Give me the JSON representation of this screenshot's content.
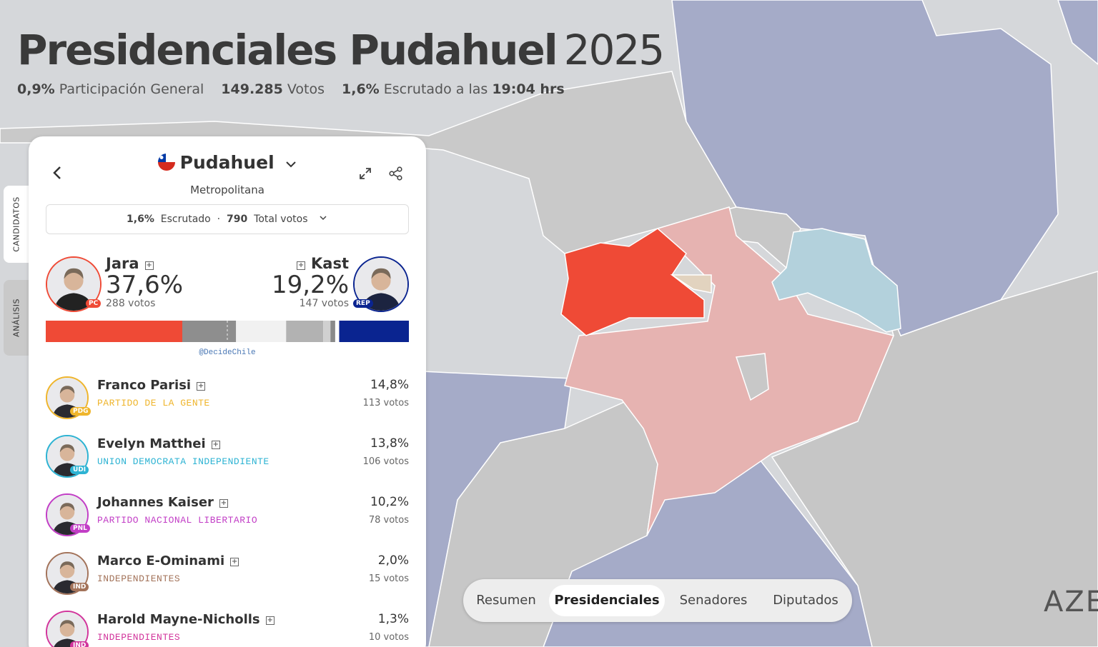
{
  "header": {
    "title": "Presidenciales Pudahuel",
    "year": "2025",
    "stats": [
      {
        "value": "0,9%",
        "label": "Participación General"
      },
      {
        "value": "149.285",
        "label": "Votos"
      },
      {
        "value": "1,6%",
        "label": "Escrutado a las",
        "time": "19:04 hrs"
      }
    ]
  },
  "side_tabs": [
    "CANDIDATOS",
    "ANÁLISIS"
  ],
  "panel": {
    "commune": "Pudahuel",
    "region": "Metropolitana",
    "counted": "1,6%",
    "counted_label": "Escrutado",
    "separator": "·",
    "total": "790",
    "total_label": "Total votos",
    "source": "@DecideChile",
    "leaders": [
      {
        "name": "Jara",
        "percent": "37,6%",
        "votes": "288 votos",
        "party": "PC",
        "color": "#ef4a36"
      },
      {
        "name": "Kast",
        "percent": "19,2%",
        "votes": "147 votos",
        "party": "REP",
        "color": "#0a2490"
      }
    ],
    "candidates": [
      {
        "name": "Franco Parisi",
        "party_name": "PARTIDO DE LA GENTE",
        "percent": "14,8%",
        "votes": "113 votos",
        "party": "PDG",
        "color": "#efb52c",
        "bar_color": "#8e8e8e"
      },
      {
        "name": "Evelyn Matthei",
        "party_name": "UNION DEMOCRATA INDEPENDIENTE",
        "percent": "13,8%",
        "votes": "106 votos",
        "party": "UDI",
        "color": "#2db3d3",
        "bar_color": "#f1f1f1"
      },
      {
        "name": "Johannes Kaiser",
        "party_name": "PARTIDO NACIONAL LIBERTARIO",
        "percent": "10,2%",
        "votes": "78 votos",
        "party": "PNL",
        "color": "#c23ec6",
        "bar_color": "#b2b2b2"
      },
      {
        "name": "Marco E-Ominami",
        "party_name": "INDEPENDIENTES",
        "percent": "2,0%",
        "votes": "15 votos",
        "party": "IND",
        "color": "#a3735a",
        "bar_color": "#d0d0d0"
      },
      {
        "name": "Harold Mayne-Nicholls",
        "party_name": "INDEPENDIENTES",
        "percent": "1,3%",
        "votes": "10 votos",
        "party": "IND",
        "color": "#d2359c",
        "bar_color": "#8a8a8a"
      }
    ]
  },
  "nav": [
    "Resumen",
    "Presidenciales",
    "Senadores",
    "Diputados"
  ],
  "watermark": "AZE"
}
